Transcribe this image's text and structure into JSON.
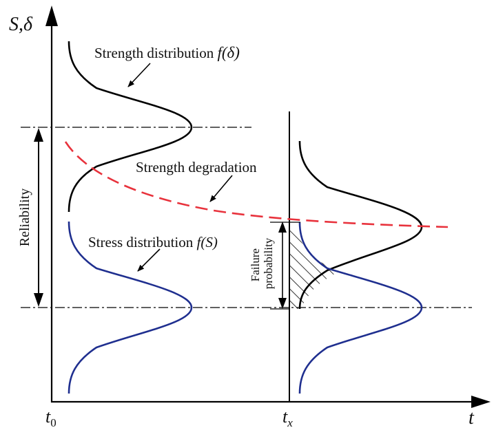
{
  "axes": {
    "y_label_S": "S",
    "y_label_sep": ",",
    "y_label_delta": "δ",
    "x_label": "t",
    "t0_main": "t",
    "t0_sub": "0",
    "tx_main": "t",
    "tx_sub": "x"
  },
  "labels": {
    "strength_distribution_text": "Strength distribution ",
    "strength_distribution_formula": "f(δ)",
    "strength_degradation": "Strength degradation",
    "stress_distribution_text": "Stress distribution ",
    "stress_distribution_formula": "f(S)",
    "reliability": "Reliability",
    "failure": "Failure",
    "probability": "probability"
  },
  "colors": {
    "strength_curve": "#000000",
    "stress_curve": "#1f2f8f",
    "degradation_curve": "#e8323c",
    "axis": "#000000"
  }
}
